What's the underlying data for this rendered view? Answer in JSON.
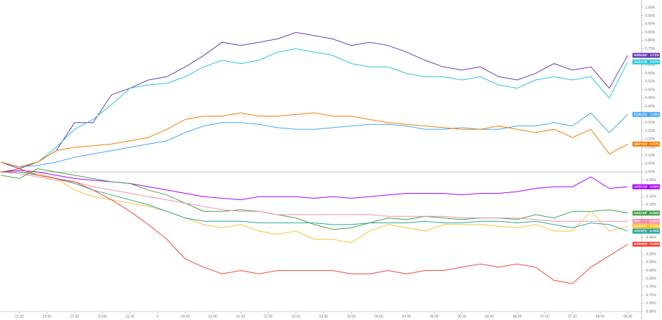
{
  "chart_data": {
    "type": "line",
    "x": [
      "21:10",
      "21:30",
      "21:50",
      "22:10",
      "22:30",
      "22:50",
      "23:10",
      "23:30",
      "23:50",
      "00:10",
      "00:30",
      "00:50",
      "01:10",
      "01:30",
      "01:50",
      "02:10",
      "02:30",
      "02:50",
      "03:10",
      "03:30",
      "03:50",
      "04:10",
      "04:30",
      "04:50",
      "05:10",
      "05:30",
      "05:50",
      "06:10",
      "06:30",
      "06:50",
      "07:10",
      "07:30",
      "07:50",
      "08:10",
      "08:30"
    ],
    "xlim": [
      "21:09",
      "08:45"
    ],
    "xticks": [
      "21:30",
      "22:00",
      "22:30",
      "23:00",
      "23:30",
      {
        "value": "00:00",
        "label": "3"
      },
      "00:30",
      "01:00",
      "01:30",
      "02:00",
      "02:30",
      "03:00",
      "03:30",
      "04:00",
      "04:30",
      "05:00",
      "05:30",
      "06:00",
      "06:30",
      "07:00",
      "07:30",
      "08:00",
      "08:30"
    ],
    "ylim": [
      -0.85,
      1.0
    ],
    "yticks": [
      {
        "value": -0.85,
        "label": "-0.85%"
      },
      {
        "value": -0.8,
        "label": "-0.80%"
      },
      {
        "value": -0.75,
        "label": "-0.75%"
      },
      {
        "value": -0.7,
        "label": "-0.70%"
      },
      {
        "value": -0.65,
        "label": "-0.65%"
      },
      {
        "value": -0.6,
        "label": "-0.60%"
      },
      {
        "value": -0.55,
        "label": "-0.55%"
      },
      {
        "value": -0.5,
        "label": "-0.50%"
      },
      {
        "value": -0.45,
        "label": "-0.45%"
      },
      {
        "value": -0.4,
        "label": "-0.40%"
      },
      {
        "value": -0.35,
        "label": "-0.35%"
      },
      {
        "value": -0.3,
        "label": "-0.30%"
      },
      {
        "value": -0.25,
        "label": "-0.25%"
      },
      {
        "value": -0.2,
        "label": "-0.20%"
      },
      {
        "value": -0.15,
        "label": "-0.15%"
      },
      {
        "value": -0.1,
        "label": "-0.10%"
      },
      {
        "value": -0.05,
        "label": "-0.05%"
      },
      {
        "value": 0,
        "label": "0.00%"
      },
      {
        "value": 0.05,
        "label": "0.05%"
      },
      {
        "value": 0.1,
        "label": "0.10%"
      },
      {
        "value": 0.15,
        "label": "0.15%"
      },
      {
        "value": 0.2,
        "label": "0.20%"
      },
      {
        "value": 0.25,
        "label": "0.25%"
      },
      {
        "value": 0.3,
        "label": "0.30%"
      },
      {
        "value": 0.35,
        "label": "0.35%"
      },
      {
        "value": 0.4,
        "label": "0.40%"
      },
      {
        "value": 0.45,
        "label": "0.45%"
      },
      {
        "value": 0.5,
        "label": "0.50%"
      },
      {
        "value": 0.55,
        "label": "0.55%"
      },
      {
        "value": 0.6,
        "label": "0.60%"
      },
      {
        "value": 0.65,
        "label": "0.65%"
      },
      {
        "value": 0.7,
        "label": "0.70%"
      },
      {
        "value": 0.75,
        "label": "0.75%"
      },
      {
        "value": 0.8,
        "label": "0.80%"
      },
      {
        "value": 0.85,
        "label": "0.85%"
      },
      {
        "value": 0.9,
        "label": "0.90%"
      },
      {
        "value": 0.95,
        "label": "0.95%"
      },
      {
        "value": 1.0,
        "label": "1.00%"
      }
    ],
    "baseline": 0,
    "series": [
      {
        "name": "NZDUSD",
        "color": "#673ab7",
        "tag": "0.71%",
        "values": [
          0.06,
          0.02,
          0.06,
          0.13,
          0.3,
          0.3,
          0.47,
          0.51,
          0.56,
          0.58,
          0.64,
          0.71,
          0.79,
          0.77,
          0.79,
          0.81,
          0.85,
          0.83,
          0.81,
          0.77,
          0.79,
          0.77,
          0.73,
          0.68,
          0.64,
          0.62,
          0.64,
          0.58,
          0.56,
          0.6,
          0.66,
          0.62,
          0.64,
          0.51,
          0.71
        ]
      },
      {
        "name": "AUDUSD",
        "color": "#26c6da",
        "tag": "0.67%",
        "values": [
          0.06,
          0.03,
          0.06,
          0.15,
          0.26,
          0.32,
          0.41,
          0.51,
          0.53,
          0.54,
          0.58,
          0.64,
          0.68,
          0.66,
          0.68,
          0.73,
          0.75,
          0.73,
          0.71,
          0.66,
          0.64,
          0.64,
          0.6,
          0.58,
          0.58,
          0.56,
          0.58,
          0.53,
          0.51,
          0.56,
          0.58,
          0.56,
          0.58,
          0.45,
          0.67
        ]
      },
      {
        "name": "EURUSD",
        "color": "#42a5f5",
        "tag": "0.35%",
        "values": [
          0.06,
          0.03,
          0.04,
          0.06,
          0.09,
          0.11,
          0.13,
          0.15,
          0.17,
          0.19,
          0.24,
          0.28,
          0.3,
          0.3,
          0.29,
          0.27,
          0.26,
          0.26,
          0.27,
          0.28,
          0.29,
          0.29,
          0.28,
          0.26,
          0.26,
          0.27,
          0.26,
          0.26,
          0.28,
          0.28,
          0.3,
          0.28,
          0.36,
          0.24,
          0.35
        ]
      },
      {
        "name": "GBPUSD",
        "color": "#f57c00",
        "tag": "0.17%",
        "values": [
          0.06,
          0.03,
          0.06,
          0.13,
          0.15,
          0.16,
          0.17,
          0.19,
          0.21,
          0.26,
          0.32,
          0.34,
          0.34,
          0.36,
          0.34,
          0.34,
          0.35,
          0.36,
          0.34,
          0.34,
          0.32,
          0.3,
          0.29,
          0.28,
          0.27,
          0.26,
          0.26,
          0.28,
          0.26,
          0.24,
          0.26,
          0.21,
          0.26,
          0.11,
          0.17
        ]
      },
      {
        "name": "USDCAD",
        "color": "#aa00ff",
        "tag": "-0.09%",
        "values": [
          0,
          0.01,
          0,
          -0.02,
          -0.04,
          -0.05,
          -0.06,
          -0.07,
          -0.09,
          -0.11,
          -0.13,
          -0.15,
          -0.16,
          -0.17,
          -0.15,
          -0.15,
          -0.15,
          -0.16,
          -0.15,
          -0.16,
          -0.15,
          -0.14,
          -0.13,
          -0.13,
          -0.13,
          -0.14,
          -0.13,
          -0.13,
          -0.12,
          -0.1,
          -0.09,
          -0.09,
          -0.03,
          -0.1,
          -0.09
        ]
      },
      {
        "name": "USDCHF",
        "color": "#43a047",
        "tag": "-0.25%",
        "values": [
          -0.02,
          -0.04,
          0.02,
          0,
          -0.02,
          -0.04,
          -0.06,
          -0.07,
          -0.11,
          -0.14,
          -0.19,
          -0.24,
          -0.24,
          -0.23,
          -0.24,
          -0.26,
          -0.28,
          -0.32,
          -0.35,
          -0.34,
          -0.31,
          -0.28,
          -0.29,
          -0.27,
          -0.28,
          -0.29,
          -0.28,
          -0.28,
          -0.29,
          -0.26,
          -0.28,
          -0.24,
          -0.24,
          -0.23,
          -0.25
        ]
      },
      {
        "name": "DXY",
        "color": "#f48fb1",
        "tag": "-0.30%",
        "values": [
          0,
          -0.01,
          -0.03,
          -0.05,
          -0.06,
          -0.09,
          -0.11,
          -0.13,
          -0.15,
          -0.17,
          -0.19,
          -0.21,
          -0.23,
          -0.24,
          -0.24,
          -0.26,
          -0.26,
          -0.26,
          -0.26,
          -0.26,
          -0.26,
          -0.27,
          -0.27,
          -0.27,
          -0.27,
          -0.28,
          -0.28,
          -0.28,
          -0.28,
          -0.29,
          -0.3,
          -0.3,
          -0.3,
          -0.3,
          -0.3
        ]
      },
      {
        "name": "USDJPY",
        "color": "#fbc02d",
        "tag": "-0.33%",
        "values": [
          0,
          0,
          -0.01,
          -0.04,
          -0.11,
          -0.15,
          -0.17,
          -0.19,
          -0.21,
          -0.24,
          -0.28,
          -0.32,
          -0.34,
          -0.32,
          -0.36,
          -0.38,
          -0.36,
          -0.41,
          -0.41,
          -0.43,
          -0.36,
          -0.32,
          -0.34,
          -0.36,
          -0.32,
          -0.32,
          -0.32,
          -0.33,
          -0.34,
          -0.32,
          -0.36,
          -0.36,
          -0.24,
          -0.36,
          -0.33
        ]
      },
      {
        "name": "USDSEK",
        "color": "#26a69a",
        "tag": "-0.36%",
        "values": [
          0,
          0,
          -0.02,
          -0.04,
          -0.07,
          -0.11,
          -0.14,
          -0.17,
          -0.2,
          -0.24,
          -0.28,
          -0.3,
          -0.3,
          -0.3,
          -0.31,
          -0.31,
          -0.31,
          -0.31,
          -0.32,
          -0.32,
          -0.31,
          -0.31,
          -0.31,
          -0.3,
          -0.31,
          -0.31,
          -0.3,
          -0.3,
          -0.31,
          -0.3,
          -0.32,
          -0.34,
          -0.31,
          -0.32,
          -0.36
        ]
      },
      {
        "name": "USDNOK",
        "color": "#f44336",
        "tag": "-0.44%",
        "values": [
          0,
          0.02,
          -0.02,
          -0.04,
          -0.06,
          -0.11,
          -0.17,
          -0.24,
          -0.32,
          -0.41,
          -0.53,
          -0.58,
          -0.62,
          -0.6,
          -0.62,
          -0.6,
          -0.6,
          -0.6,
          -0.6,
          -0.62,
          -0.62,
          -0.6,
          -0.62,
          -0.6,
          -0.6,
          -0.58,
          -0.56,
          -0.58,
          -0.56,
          -0.58,
          -0.66,
          -0.68,
          -0.58,
          -0.51,
          -0.44
        ]
      }
    ]
  }
}
